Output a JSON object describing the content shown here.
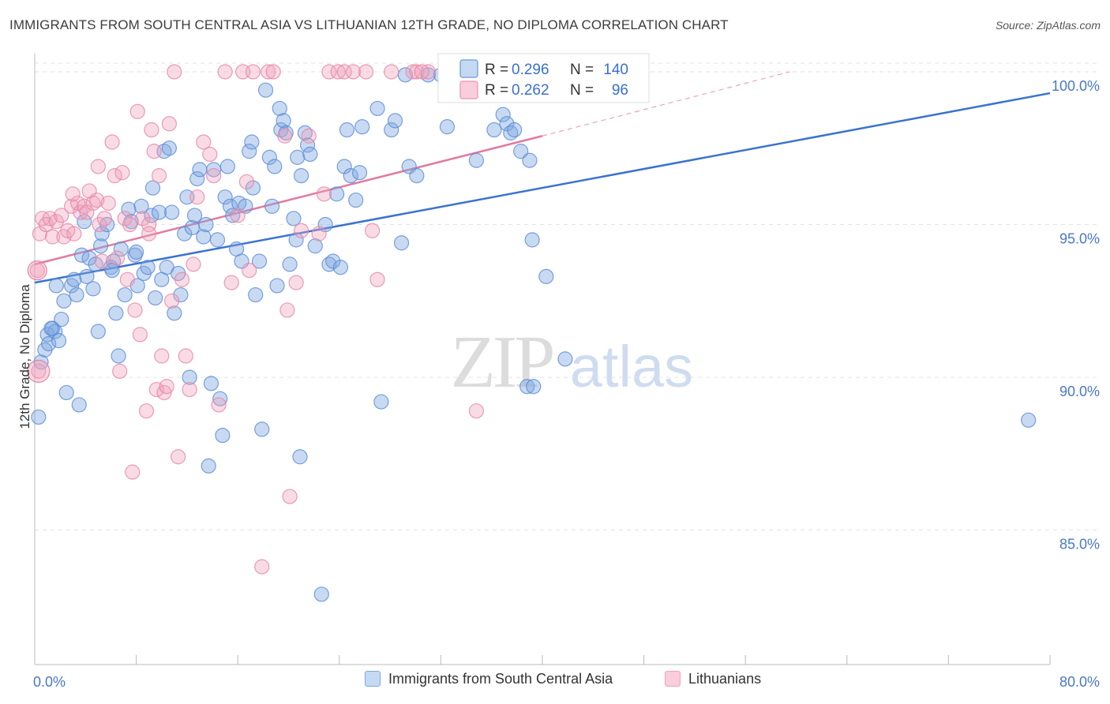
{
  "title": "IMMIGRANTS FROM SOUTH CENTRAL ASIA VS LITHUANIAN 12TH GRADE, NO DIPLOMA CORRELATION CHART",
  "source": "Source: ZipAtlas.com",
  "watermark": {
    "zip": "ZIP",
    "atlas": "atlas"
  },
  "legend_stats": [
    {
      "r_label": "R =",
      "r_value": "0.296",
      "n_label": "N =",
      "n_value": "140",
      "color": "#7ba7e0"
    },
    {
      "r_label": "R =",
      "r_value": "0.262",
      "n_label": "N =",
      "n_value": "96",
      "color": "#f0a0bb"
    }
  ],
  "bottom_legend": [
    {
      "label": "Immigrants from South Central Asia",
      "color": "#7ba7e0"
    },
    {
      "label": "Lithuanians",
      "color": "#f0a0bb"
    }
  ],
  "chart_data": {
    "type": "scatter",
    "ylabel": "12th Grade, No Diploma",
    "xlim": [
      0,
      80
    ],
    "ylim": [
      80.6,
      100.8
    ],
    "x_tick_labels": [
      {
        "value": 0,
        "label": "0.0%"
      },
      {
        "value": 80,
        "label": "80.0%"
      }
    ],
    "y_tick_labels": [
      {
        "value": 100,
        "label": "100.0%"
      },
      {
        "value": 95,
        "label": "95.0%"
      },
      {
        "value": 90,
        "label": "90.0%"
      },
      {
        "value": 85,
        "label": "85.0%"
      }
    ],
    "grid": true,
    "legend_position": "top-center",
    "series": [
      {
        "name": "Immigrants from South Central Asia",
        "color": "#7ba7e0",
        "stroke": "#5a8ad6",
        "trend": {
          "x": [
            0,
            80
          ],
          "y": [
            93.1,
            99.3
          ],
          "style": "solid"
        },
        "points": [
          [
            0.3,
            88.7
          ],
          [
            0.5,
            90.5
          ],
          [
            0.8,
            90.9
          ],
          [
            1.0,
            91.4
          ],
          [
            1.1,
            91.1
          ],
          [
            1.4,
            91.6
          ],
          [
            1.6,
            91.5
          ],
          [
            1.7,
            93.0
          ],
          [
            1.9,
            91.2
          ],
          [
            2.1,
            91.9
          ],
          [
            2.3,
            92.5
          ],
          [
            2.5,
            89.5
          ],
          [
            2.9,
            93.0
          ],
          [
            3.1,
            93.2
          ],
          [
            3.5,
            89.1
          ],
          [
            3.7,
            94.0
          ],
          [
            3.9,
            95.1
          ],
          [
            4.1,
            93.3
          ],
          [
            4.3,
            93.9
          ],
          [
            4.6,
            92.9
          ],
          [
            4.8,
            93.7
          ],
          [
            5.0,
            91.5
          ],
          [
            5.2,
            94.3
          ],
          [
            5.3,
            94.7
          ],
          [
            5.7,
            95.0
          ],
          [
            6.0,
            93.6
          ],
          [
            6.2,
            93.8
          ],
          [
            6.4,
            92.1
          ],
          [
            6.6,
            90.7
          ],
          [
            6.8,
            94.2
          ],
          [
            7.1,
            92.7
          ],
          [
            7.4,
            95.5
          ],
          [
            7.6,
            95.1
          ],
          [
            7.9,
            94.0
          ],
          [
            8.1,
            93.0
          ],
          [
            8.4,
            95.6
          ],
          [
            8.6,
            93.4
          ],
          [
            8.9,
            93.6
          ],
          [
            9.2,
            95.3
          ],
          [
            9.3,
            96.2
          ],
          [
            9.5,
            92.6
          ],
          [
            9.8,
            95.4
          ],
          [
            10.0,
            93.2
          ],
          [
            10.2,
            97.4
          ],
          [
            10.4,
            93.6
          ],
          [
            10.6,
            97.5
          ],
          [
            10.8,
            95.4
          ],
          [
            11.0,
            92.1
          ],
          [
            11.3,
            93.4
          ],
          [
            11.5,
            92.7
          ],
          [
            11.8,
            94.7
          ],
          [
            12.0,
            95.9
          ],
          [
            12.2,
            90.0
          ],
          [
            12.4,
            94.9
          ],
          [
            12.6,
            95.3
          ],
          [
            12.8,
            96.5
          ],
          [
            13.0,
            96.8
          ],
          [
            13.3,
            94.6
          ],
          [
            13.5,
            95.0
          ],
          [
            13.7,
            87.1
          ],
          [
            13.9,
            89.8
          ],
          [
            14.1,
            96.8
          ],
          [
            14.4,
            94.5
          ],
          [
            14.6,
            89.3
          ],
          [
            14.8,
            88.1
          ],
          [
            15.0,
            95.9
          ],
          [
            15.2,
            96.9
          ],
          [
            15.4,
            95.6
          ],
          [
            15.6,
            95.3
          ],
          [
            15.9,
            94.2
          ],
          [
            16.1,
            95.7
          ],
          [
            16.3,
            93.8
          ],
          [
            16.6,
            95.6
          ],
          [
            16.9,
            97.4
          ],
          [
            17.1,
            97.7
          ],
          [
            17.2,
            96.2
          ],
          [
            17.4,
            92.7
          ],
          [
            17.7,
            93.8
          ],
          [
            17.9,
            88.3
          ],
          [
            18.2,
            99.4
          ],
          [
            18.5,
            97.2
          ],
          [
            18.7,
            95.6
          ],
          [
            18.9,
            96.9
          ],
          [
            19.1,
            93.0
          ],
          [
            19.3,
            98.8
          ],
          [
            19.4,
            98.1
          ],
          [
            19.6,
            98.4
          ],
          [
            19.8,
            98.0
          ],
          [
            20.1,
            93.7
          ],
          [
            20.4,
            95.2
          ],
          [
            20.6,
            94.5
          ],
          [
            20.7,
            97.2
          ],
          [
            20.9,
            87.4
          ],
          [
            21.0,
            96.6
          ],
          [
            21.3,
            98.0
          ],
          [
            21.5,
            97.6
          ],
          [
            21.7,
            97.3
          ],
          [
            22.1,
            94.3
          ],
          [
            22.6,
            82.9
          ],
          [
            22.9,
            95.0
          ],
          [
            23.2,
            93.7
          ],
          [
            23.5,
            93.8
          ],
          [
            23.8,
            96.0
          ],
          [
            24.1,
            93.6
          ],
          [
            24.4,
            96.9
          ],
          [
            24.6,
            98.1
          ],
          [
            24.9,
            96.6
          ],
          [
            25.3,
            95.8
          ],
          [
            25.6,
            96.7
          ],
          [
            25.8,
            98.2
          ],
          [
            27.0,
            98.8
          ],
          [
            27.3,
            89.2
          ],
          [
            28.1,
            98.1
          ],
          [
            28.4,
            98.4
          ],
          [
            28.9,
            94.4
          ],
          [
            29.2,
            99.9
          ],
          [
            29.5,
            96.9
          ],
          [
            30.1,
            96.6
          ],
          [
            31.0,
            99.9
          ],
          [
            32.0,
            99.9
          ],
          [
            32.5,
            98.2
          ],
          [
            34.8,
            97.1
          ],
          [
            35.3,
            99.9
          ],
          [
            36.2,
            98.1
          ],
          [
            36.9,
            98.6
          ],
          [
            37.2,
            98.3
          ],
          [
            37.5,
            98.0
          ],
          [
            37.8,
            98.1
          ],
          [
            38.3,
            97.4
          ],
          [
            38.8,
            89.7
          ],
          [
            39.0,
            97.1
          ],
          [
            39.2,
            94.5
          ],
          [
            39.3,
            89.7
          ],
          [
            40.3,
            93.3
          ],
          [
            41.8,
            90.6
          ],
          [
            78.3,
            88.6
          ],
          [
            1.3,
            91.6
          ],
          [
            3.3,
            92.7
          ],
          [
            6.1,
            93.5
          ],
          [
            8.0,
            94.1
          ]
        ]
      },
      {
        "name": "Lithuanians",
        "color": "#f0a0bb",
        "stroke": "#e684a6",
        "trend": {
          "x": [
            0,
            40
          ],
          "y": [
            93.7,
            97.9
          ],
          "style": "solid",
          "extension": {
            "x": [
              40,
              59.5
            ],
            "y": [
              97.9,
              100.0
            ]
          }
        },
        "points": [
          [
            0.2,
            93.5
          ],
          [
            0.3,
            90.2
          ],
          [
            0.4,
            94.7
          ],
          [
            0.6,
            95.2
          ],
          [
            0.9,
            95.0
          ],
          [
            1.2,
            95.2
          ],
          [
            1.4,
            94.6
          ],
          [
            1.7,
            95.1
          ],
          [
            2.1,
            95.3
          ],
          [
            2.3,
            94.6
          ],
          [
            2.6,
            94.8
          ],
          [
            2.9,
            95.6
          ],
          [
            3.1,
            94.7
          ],
          [
            3.4,
            95.7
          ],
          [
            3.6,
            95.4
          ],
          [
            3.9,
            95.6
          ],
          [
            4.1,
            95.4
          ],
          [
            4.3,
            96.1
          ],
          [
            4.6,
            95.7
          ],
          [
            4.9,
            95.8
          ],
          [
            5.1,
            95.0
          ],
          [
            5.3,
            93.8
          ],
          [
            5.5,
            95.2
          ],
          [
            5.8,
            95.7
          ],
          [
            6.1,
            97.7
          ],
          [
            6.3,
            96.6
          ],
          [
            6.5,
            93.9
          ],
          [
            6.7,
            90.2
          ],
          [
            6.9,
            96.7
          ],
          [
            7.1,
            95.2
          ],
          [
            7.3,
            93.2
          ],
          [
            7.5,
            95.0
          ],
          [
            7.7,
            86.9
          ],
          [
            7.9,
            92.2
          ],
          [
            8.1,
            98.7
          ],
          [
            8.3,
            91.4
          ],
          [
            8.5,
            95.2
          ],
          [
            8.8,
            88.9
          ],
          [
            9.0,
            95.0
          ],
          [
            9.2,
            98.1
          ],
          [
            9.4,
            97.4
          ],
          [
            9.6,
            89.6
          ],
          [
            9.8,
            96.6
          ],
          [
            10.0,
            90.7
          ],
          [
            10.2,
            89.5
          ],
          [
            10.4,
            89.7
          ],
          [
            10.6,
            98.3
          ],
          [
            10.8,
            92.5
          ],
          [
            11.0,
            100.0
          ],
          [
            11.3,
            87.4
          ],
          [
            11.6,
            93.2
          ],
          [
            11.9,
            90.7
          ],
          [
            12.2,
            89.6
          ],
          [
            12.5,
            93.7
          ],
          [
            12.8,
            95.9
          ],
          [
            13.3,
            97.7
          ],
          [
            13.8,
            97.3
          ],
          [
            14.1,
            96.6
          ],
          [
            14.5,
            89.1
          ],
          [
            15.0,
            100.0
          ],
          [
            15.5,
            93.1
          ],
          [
            16.0,
            95.3
          ],
          [
            16.4,
            100.0
          ],
          [
            16.7,
            96.4
          ],
          [
            16.9,
            93.5
          ],
          [
            17.2,
            100.0
          ],
          [
            17.9,
            83.8
          ],
          [
            18.4,
            100.0
          ],
          [
            18.8,
            100.0
          ],
          [
            19.7,
            97.9
          ],
          [
            19.9,
            92.2
          ],
          [
            20.1,
            86.1
          ],
          [
            20.6,
            93.1
          ],
          [
            21.0,
            94.8
          ],
          [
            21.6,
            97.9
          ],
          [
            22.4,
            94.7
          ],
          [
            22.8,
            96.0
          ],
          [
            23.2,
            100.0
          ],
          [
            23.9,
            100.0
          ],
          [
            24.4,
            100.0
          ],
          [
            25.1,
            100.0
          ],
          [
            26.1,
            100.0
          ],
          [
            27.0,
            93.2
          ],
          [
            28.1,
            100.0
          ],
          [
            29.8,
            100.0
          ],
          [
            30.1,
            100.0
          ],
          [
            31.0,
            100.0
          ],
          [
            33.2,
            100.0
          ],
          [
            33.9,
            100.0
          ],
          [
            34.8,
            88.9
          ],
          [
            36.1,
            100.0
          ],
          [
            26.6,
            94.8
          ],
          [
            3.0,
            96.0
          ],
          [
            5.0,
            96.9
          ],
          [
            9.0,
            94.7
          ],
          [
            30.5,
            100.0
          ]
        ]
      }
    ]
  }
}
